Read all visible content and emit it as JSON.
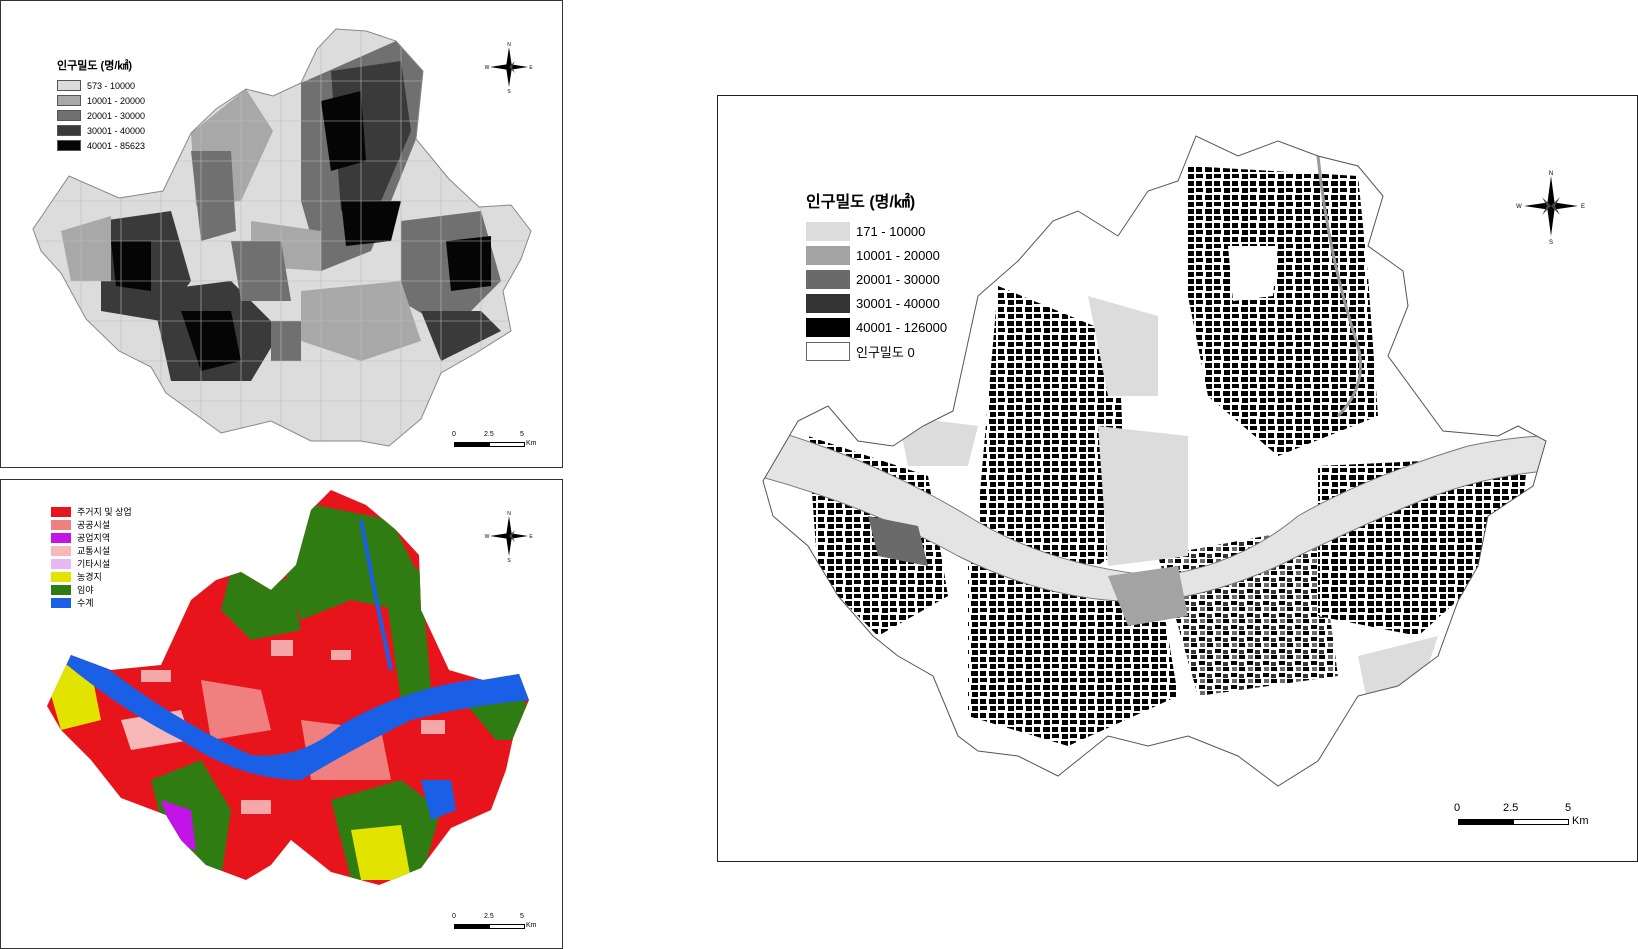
{
  "maps": [
    {
      "legend_title": "인구밀도 (명/㎢)",
      "classes": [
        {
          "label": "573 - 10000",
          "color": "#dcdcdc"
        },
        {
          "label": "10001 - 20000",
          "color": "#a8a8a8"
        },
        {
          "label": "20001 - 30000",
          "color": "#707070"
        },
        {
          "label": "30001 - 40000",
          "color": "#3a3a3a"
        },
        {
          "label": "40001 - 85623",
          "color": "#050505"
        }
      ],
      "scale": {
        "t0": "0",
        "t1": "2.5",
        "t2": "5",
        "unit": "Km"
      },
      "compass": {
        "n": "N",
        "s": "S",
        "e": "E",
        "w": "W"
      }
    },
    {
      "classes": [
        {
          "label": "주거지 및 상업",
          "color": "#e8141b"
        },
        {
          "label": "공공시설",
          "color": "#f08080"
        },
        {
          "label": "공업지역",
          "color": "#c214e6"
        },
        {
          "label": "교통시설",
          "color": "#f6b8b8"
        },
        {
          "label": "기타시설",
          "color": "#e8b6f0"
        },
        {
          "label": "농경지",
          "color": "#e3e300"
        },
        {
          "label": "임야",
          "color": "#2f7d12"
        },
        {
          "label": "수계",
          "color": "#1a60e6"
        }
      ],
      "scale": {
        "t0": "0",
        "t1": "2.5",
        "t2": "5",
        "unit": "Km"
      },
      "compass": {
        "n": "N",
        "s": "S",
        "e": "E",
        "w": "W"
      }
    },
    {
      "legend_title": "인구밀도 (명/㎢)",
      "classes": [
        {
          "label": "171 - 10000",
          "color": "#dcdcdc"
        },
        {
          "label": "10001 - 20000",
          "color": "#a3a3a3"
        },
        {
          "label": "20001 - 30000",
          "color": "#6a6a6a"
        },
        {
          "label": "30001 - 40000",
          "color": "#333333"
        },
        {
          "label": "40001 - 126000",
          "color": "#000000"
        },
        {
          "label": "인구밀도 0",
          "color": "#ffffff"
        }
      ],
      "scale": {
        "t0": "0",
        "t1": "2.5",
        "t2": "5",
        "unit": "Km"
      },
      "compass": {
        "n": "N",
        "s": "S",
        "e": "E",
        "w": "W"
      }
    }
  ]
}
